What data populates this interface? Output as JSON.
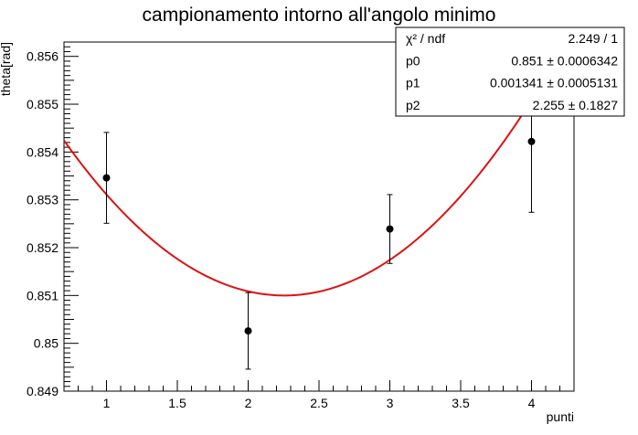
{
  "chart_data": {
    "type": "scatter",
    "title": "campionamento intorno all'angolo minimo",
    "xlabel": "punti",
    "ylabel": "theta[rad]",
    "xlim": [
      0.7,
      4.3
    ],
    "ylim": [
      0.849,
      0.8563
    ],
    "x_ticks": [
      1,
      1.5,
      2,
      2.5,
      3,
      3.5,
      4
    ],
    "x_tick_labels": [
      "1",
      "1.5",
      "2",
      "2.5",
      "3",
      "3.5",
      "4"
    ],
    "y_ticks": [
      0.849,
      0.85,
      0.851,
      0.852,
      0.853,
      0.854,
      0.855,
      0.856
    ],
    "y_tick_labels": [
      "0.849",
      "0.85",
      "0.851",
      "0.852",
      "0.853",
      "0.854",
      "0.855",
      "0.856"
    ],
    "grid": false,
    "points": [
      {
        "x": 1,
        "y": 0.85346,
        "err": 0.00095
      },
      {
        "x": 2,
        "y": 0.85026,
        "err": 0.0008
      },
      {
        "x": 3,
        "y": 0.85239,
        "err": 0.00072
      },
      {
        "x": 4,
        "y": 0.85422,
        "err": 0.00148
      }
    ],
    "fit": {
      "expression": "p0 + p1*(x-p2)^2",
      "p0": 0.851,
      "p1": 0.001341,
      "p2": 2.255,
      "x_range": [
        0.7,
        4.3
      ],
      "color": "#dd1111"
    },
    "stats_box": {
      "rows": [
        {
          "label": "χ² / ndf",
          "value": "2.249 / 1"
        },
        {
          "label": "p0",
          "value": "0.851 ± 0.0006342"
        },
        {
          "label": "p1",
          "value": "0.001341 ± 0.0005131"
        },
        {
          "label": "p2",
          "value": "2.255 ± 0.1827"
        }
      ]
    }
  }
}
